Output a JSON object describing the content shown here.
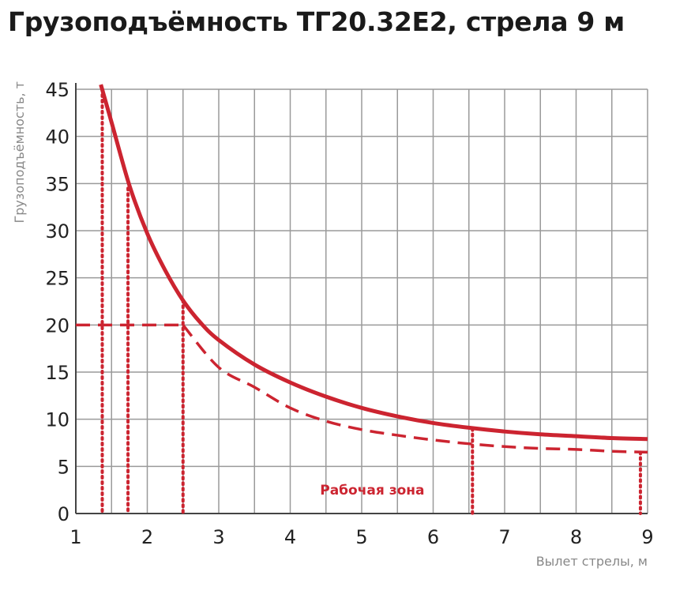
{
  "title": "Грузоподъёмность ТГ20.32Е2, стрела 9 м",
  "chart_data": {
    "type": "line",
    "title": "Грузоподъёмность ТГ20.32Е2, стрела 9 м",
    "xlabel": "Вылет стрелы, м",
    "ylabel": "Грузоподъёмность, т",
    "xlim": [
      1,
      9
    ],
    "ylim": [
      0,
      45
    ],
    "x_ticks": [
      "1",
      "2",
      "3",
      "4",
      "5",
      "6",
      "7",
      "8",
      "9"
    ],
    "y_ticks": [
      "0",
      "5",
      "10",
      "15",
      "20",
      "25",
      "30",
      "35",
      "40",
      "45"
    ],
    "grid": true,
    "series": [
      {
        "style": "solid",
        "color": "#cc2430",
        "x": [
          1.35,
          1.5,
          1.75,
          2.0,
          2.25,
          2.5,
          2.75,
          3.0,
          3.5,
          4.0,
          4.5,
          5.0,
          5.5,
          6.0,
          6.5,
          7.0,
          7.5,
          8.0,
          8.5,
          9.0
        ],
        "y": [
          45.5,
          41.5,
          34.8,
          29.7,
          25.8,
          22.6,
          20.2,
          18.4,
          15.8,
          13.9,
          12.4,
          11.2,
          10.3,
          9.6,
          9.1,
          8.7,
          8.4,
          8.2,
          8.0,
          7.9
        ]
      },
      {
        "style": "dashed",
        "color": "#cc2430",
        "x": [
          1.0,
          1.5,
          2.0,
          2.5,
          3.0,
          3.5,
          4.0,
          4.5,
          5.0,
          5.5,
          6.0,
          6.5,
          7.0,
          7.5,
          8.0,
          8.5,
          9.0
        ],
        "y": [
          20,
          20,
          20,
          20,
          15.5,
          13.4,
          11.2,
          9.8,
          8.9,
          8.3,
          7.8,
          7.4,
          7.1,
          6.9,
          6.8,
          6.6,
          6.5
        ]
      }
    ],
    "dotted_guides": [
      {
        "x": 1.37,
        "y_top": 45
      },
      {
        "x": 1.73,
        "y_top": 34.5
      },
      {
        "x": 2.5,
        "y_top": 22.6
      },
      {
        "x": 6.55,
        "y_top": 9.0
      },
      {
        "x": 8.9,
        "y_top": 6.5
      }
    ],
    "annotations": [
      {
        "text": "Рабочая зона",
        "x": 5.5,
        "y": 2.5
      }
    ]
  }
}
